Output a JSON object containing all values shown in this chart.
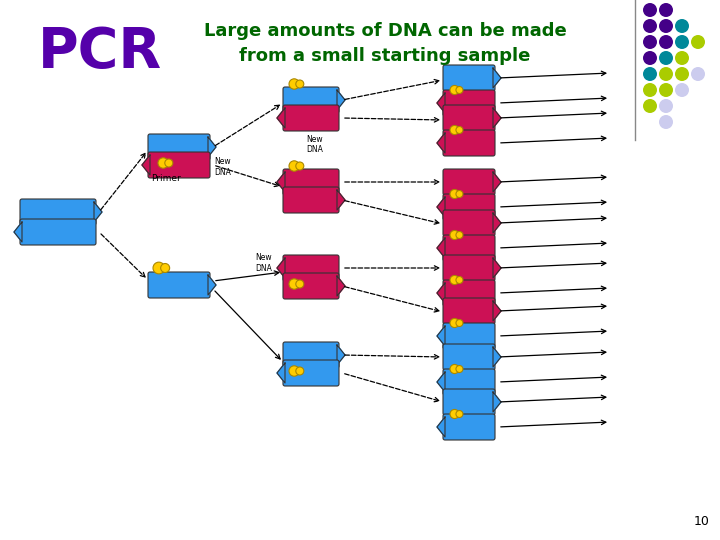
{
  "title_pcr": "PCR",
  "title_pcr_color": "#5500aa",
  "subtitle_line1": "Large amounts of DNA can be made",
  "subtitle_line2": "from a small starting sample",
  "subtitle_color": "#006600",
  "background_color": "#ffffff",
  "blue_color": "#3399ee",
  "red_color": "#cc1155",
  "yellow_color": "#ffcc00",
  "page_number": "10",
  "dot_row_colors": [
    [
      "#440088",
      "#440088",
      "none",
      "none"
    ],
    [
      "#440088",
      "#440088",
      "#008899",
      "none"
    ],
    [
      "#440088",
      "#440088",
      "#008899",
      "#aacc00"
    ],
    [
      "#440088",
      "#008899",
      "#aacc00",
      "none"
    ],
    [
      "#008899",
      "#aacc00",
      "#aacc00",
      "#ccccee"
    ],
    [
      "#aacc00",
      "#aacc00",
      "#ccccee",
      "none"
    ],
    [
      "#aacc00",
      "#ccccee",
      "none",
      "none"
    ],
    [
      "none",
      "#ccccee",
      "none",
      "none"
    ]
  ]
}
